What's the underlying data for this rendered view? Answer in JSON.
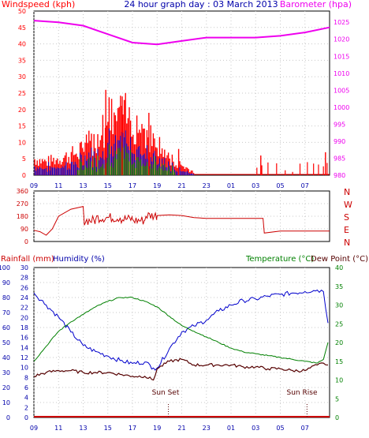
{
  "title": "24 hour graph day : 03 March 2013",
  "colors": {
    "wind": "#ff0000",
    "gust_blue": "#0000cc",
    "gust_green": "#008000",
    "barometer": "#ee00ee",
    "direction": "#cc0000",
    "humidity": "#0000cc",
    "temperature": "#008000",
    "dewpoint": "#550000",
    "rainfall": "#cc0000",
    "left_axis": "#0000aa",
    "right_axis": "#008000",
    "grid": "#c8c8c8"
  },
  "chart_data": [
    {
      "type": "line",
      "name": "wind-barometer",
      "left_label": "Windspeed (kph)",
      "right_label": "Barometer (hpa)",
      "x_ticks": [
        "11",
        "13",
        "15",
        "17",
        "19",
        "21",
        "23",
        "01",
        "03",
        "05",
        "07",
        "09"
      ],
      "left_ticks": [
        "0",
        "5",
        "10",
        "15",
        "20",
        "25",
        "30",
        "35",
        "40",
        "45",
        "50"
      ],
      "right_ticks": [
        "980",
        "985",
        "990",
        "995",
        "1000",
        "1005",
        "1010",
        "1015",
        "1020",
        "1025"
      ],
      "ylim_left": [
        0,
        50
      ],
      "ylim_right": [
        980,
        1028.3
      ],
      "barometer": {
        "hours": [
          9,
          11,
          13,
          15,
          17,
          19,
          21,
          23,
          1,
          3,
          5,
          7,
          9
        ],
        "values": [
          1025.5,
          1025,
          1024,
          1021.5,
          1019,
          1018.5,
          1019.5,
          1020.5,
          1020.5,
          1020.5,
          1021,
          1022,
          1023.5
        ]
      },
      "wind_envelope": {
        "hours": [
          9,
          10,
          11,
          12,
          13,
          14,
          15,
          16,
          17,
          18,
          19,
          20,
          21,
          22
        ],
        "values": [
          5,
          4,
          5,
          6,
          8,
          11,
          17,
          18,
          17,
          14,
          9,
          5,
          3,
          1
        ]
      },
      "wind_peaks": [
        {
          "time": "14:50",
          "value": 26
        },
        {
          "time": "16:10",
          "value": 24
        },
        {
          "time": "18:20",
          "value": 19
        },
        {
          "time": "20:45",
          "value": 8
        },
        {
          "time": "03:25",
          "value": 6
        },
        {
          "time": "08:40",
          "value": 7
        }
      ]
    },
    {
      "type": "line",
      "name": "wind-direction",
      "left_ticks": [
        "0",
        "90",
        "180",
        "270",
        "360"
      ],
      "right_ticks": [
        "N",
        "E",
        "S",
        "W",
        "N"
      ],
      "ylim": [
        0,
        360
      ],
      "series": [
        {
          "hours": [
            9,
            9.5,
            10,
            10.5,
            11,
            12,
            13,
            14,
            15,
            16,
            17,
            18,
            19,
            20,
            21,
            22,
            23,
            1,
            3,
            3.6,
            3.7,
            5,
            7,
            9
          ],
          "values": [
            80,
            70,
            45,
            90,
            180,
            230,
            250,
            150,
            170,
            170,
            160,
            150,
            185,
            190,
            185,
            170,
            165,
            165,
            165,
            165,
            60,
            75,
            75,
            75
          ]
        }
      ]
    },
    {
      "type": "line",
      "name": "rain-humidity-temperature",
      "rain_label": "Rainfall (mm)",
      "humidity_label": "Humidity (%)",
      "temperature_label": "Temperature (°C)",
      "dewpoint_label": "Dew Point (°C)",
      "rain_ticks": [
        "0",
        "2",
        "4",
        "6",
        "8",
        "10",
        "12",
        "14",
        "16",
        "18",
        "20",
        "22",
        "24",
        "26",
        "28",
        "30"
      ],
      "humidity_ticks": [
        "0",
        "10",
        "20",
        "30",
        "40",
        "50",
        "60",
        "70",
        "80",
        "90",
        "100"
      ],
      "temp_ticks": [
        "0",
        "5",
        "10",
        "15",
        "20",
        "25",
        "30",
        "35",
        "40"
      ],
      "x_ticks": [
        "11",
        "13",
        "15",
        "17",
        "19",
        "21",
        "23",
        "01",
        "03",
        "05",
        "07",
        "09"
      ],
      "ylim_temperature": [
        0,
        40
      ],
      "ylim_humidity": [
        0,
        100
      ],
      "annotations": [
        {
          "text": "Sun Set",
          "time": "19:55"
        },
        {
          "text": "Sun Rise",
          "time": "07:10"
        }
      ],
      "series": [
        {
          "name": "Humidity (%)",
          "hours": [
            9,
            10,
            11,
            12,
            13,
            14,
            15,
            16,
            17,
            18,
            18.7,
            19,
            20,
            21,
            22,
            23,
            0,
            1,
            2,
            3,
            4,
            5,
            6,
            7,
            8,
            8.5,
            9
          ],
          "values": [
            83,
            75,
            67,
            57,
            48,
            44,
            41,
            38,
            36,
            37,
            33,
            33,
            46,
            57,
            61,
            65,
            71,
            75,
            78,
            79,
            81,
            82,
            83,
            84,
            85,
            84,
            63
          ]
        },
        {
          "name": "Temperature (°C)",
          "hours": [
            9,
            10,
            11,
            12,
            13,
            14,
            15,
            16,
            17,
            18,
            19,
            20,
            21,
            22,
            23,
            0,
            1,
            2,
            3,
            4,
            5,
            6,
            7,
            8,
            8.5,
            9
          ],
          "values": [
            15,
            19,
            23,
            25.5,
            27.5,
            29.5,
            31,
            32,
            32,
            31,
            29.5,
            27,
            24.5,
            23,
            21.5,
            20,
            18.5,
            17.5,
            17,
            16.5,
            16,
            15.5,
            15,
            14.5,
            15.5,
            20
          ]
        },
        {
          "name": "Dew Point (°C)",
          "hours": [
            9,
            10,
            11,
            12,
            13,
            14,
            15,
            16,
            17,
            18,
            18.7,
            19,
            20,
            21,
            22,
            23,
            0,
            1,
            2,
            3,
            4,
            5,
            6,
            7,
            8,
            8.5,
            9
          ],
          "values": [
            11,
            12,
            12.5,
            12.5,
            12,
            12,
            12,
            11.5,
            11,
            11,
            10,
            13,
            15,
            15.5,
            14,
            14,
            14,
            14,
            13.5,
            13.5,
            13,
            13,
            12.5,
            12.5,
            14,
            14.5,
            14
          ]
        }
      ]
    }
  ]
}
